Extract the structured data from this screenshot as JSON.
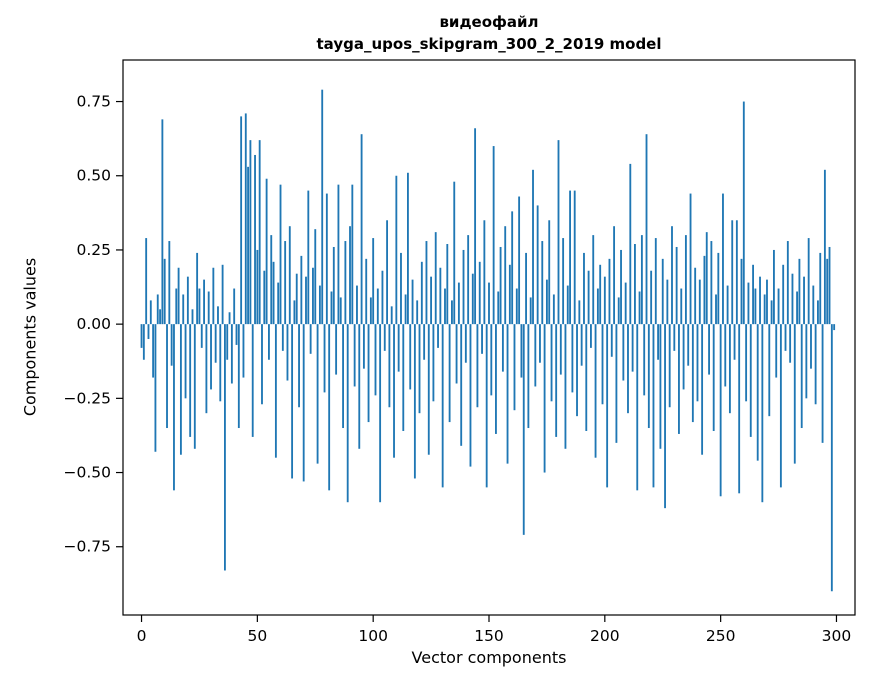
{
  "figure": {
    "title_line1": "видеофайл",
    "title_line2": "tayga_upos_skipgram_300_2_2019 model",
    "xlabel": "Vector components",
    "ylabel": "Components values"
  },
  "chart_data": {
    "type": "bar",
    "title": "видеофайл tayga_upos_skipgram_300_2_2019 model",
    "xlabel": "Vector components",
    "ylabel": "Components values",
    "x_start": 0,
    "xlim": [
      -8,
      308
    ],
    "ylim": [
      -0.98,
      0.89
    ],
    "x_ticks": [
      0,
      50,
      100,
      150,
      200,
      250,
      300
    ],
    "x_tick_labels": [
      "0",
      "50",
      "100",
      "150",
      "200",
      "250",
      "300"
    ],
    "y_ticks": [
      0.75,
      0.5,
      0.25,
      0.0,
      -0.25,
      -0.5,
      -0.75
    ],
    "y_tick_labels": [
      "0.75",
      "0.50",
      "0.25",
      "0.00",
      "−0.25",
      "−0.50",
      "−0.75"
    ],
    "grid": false,
    "legend": false,
    "bar_color": "#1f77b4",
    "values": [
      -0.08,
      -0.12,
      0.29,
      -0.05,
      0.08,
      -0.18,
      -0.43,
      0.1,
      0.05,
      0.69,
      0.22,
      -0.35,
      0.28,
      -0.14,
      -0.56,
      0.12,
      0.19,
      -0.44,
      0.1,
      -0.25,
      0.16,
      -0.38,
      0.05,
      -0.42,
      0.24,
      0.12,
      -0.08,
      0.15,
      -0.3,
      0.11,
      -0.22,
      0.19,
      -0.13,
      0.06,
      -0.26,
      0.2,
      -0.83,
      -0.12,
      0.04,
      -0.2,
      0.12,
      -0.07,
      -0.35,
      0.7,
      -0.18,
      0.71,
      0.53,
      0.62,
      -0.38,
      0.57,
      0.25,
      0.62,
      -0.27,
      0.18,
      0.49,
      -0.12,
      0.3,
      0.21,
      -0.45,
      0.14,
      0.47,
      -0.09,
      0.28,
      -0.19,
      0.33,
      -0.52,
      0.08,
      0.17,
      -0.28,
      0.23,
      -0.53,
      0.16,
      0.45,
      -0.1,
      0.19,
      0.32,
      -0.47,
      0.13,
      0.79,
      -0.23,
      0.44,
      -0.56,
      0.11,
      0.26,
      -0.17,
      0.47,
      0.09,
      -0.35,
      0.28,
      -0.6,
      0.33,
      0.47,
      -0.21,
      0.13,
      -0.42,
      0.64,
      -0.15,
      0.22,
      -0.33,
      0.09,
      0.29,
      -0.24,
      0.12,
      -0.6,
      0.18,
      -0.09,
      0.35,
      -0.28,
      0.06,
      -0.45,
      0.5,
      -0.16,
      0.24,
      -0.36,
      0.1,
      0.51,
      -0.22,
      0.15,
      -0.52,
      0.08,
      -0.3,
      0.21,
      -0.12,
      0.28,
      -0.44,
      0.16,
      -0.26,
      0.31,
      -0.08,
      0.19,
      -0.55,
      0.12,
      0.27,
      -0.33,
      0.08,
      0.48,
      -0.2,
      0.14,
      -0.41,
      0.25,
      -0.13,
      0.3,
      -0.48,
      0.17,
      0.66,
      -0.28,
      0.21,
      -0.1,
      0.35,
      -0.55,
      0.14,
      -0.24,
      0.6,
      -0.37,
      0.11,
      0.26,
      -0.16,
      0.33,
      -0.47,
      0.2,
      0.38,
      -0.29,
      0.12,
      0.43,
      -0.18,
      -0.71,
      0.24,
      -0.35,
      0.09,
      0.52,
      -0.21,
      0.4,
      -0.13,
      0.28,
      -0.5,
      0.15,
      0.35,
      -0.26,
      0.1,
      -0.38,
      0.62,
      -0.17,
      0.29,
      -0.42,
      0.13,
      0.45,
      -0.23,
      0.45,
      -0.31,
      0.08,
      -0.14,
      0.24,
      -0.36,
      0.18,
      -0.08,
      0.3,
      -0.45,
      0.12,
      0.2,
      -0.27,
      0.16,
      -0.55,
      0.22,
      -0.11,
      0.33,
      -0.4,
      0.09,
      0.25,
      -0.19,
      0.14,
      -0.3,
      0.54,
      -0.16,
      0.27,
      -0.56,
      0.11,
      0.3,
      -0.24,
      0.64,
      -0.35,
      0.18,
      -0.55,
      0.29,
      -0.12,
      -0.42,
      0.22,
      -0.62,
      0.15,
      -0.28,
      0.33,
      -0.09,
      0.26,
      -0.37,
      0.12,
      -0.22,
      0.3,
      -0.14,
      0.44,
      -0.33,
      0.19,
      -0.26,
      0.15,
      -0.44,
      0.23,
      0.31,
      -0.17,
      0.28,
      -0.36,
      0.1,
      0.24,
      -0.58,
      0.44,
      -0.21,
      0.13,
      -0.3,
      0.35,
      -0.12,
      0.35,
      -0.57,
      0.22,
      0.75,
      -0.26,
      0.14,
      -0.38,
      0.2,
      0.12,
      -0.46,
      0.16,
      -0.6,
      0.1,
      0.15,
      -0.31,
      0.08,
      0.25,
      -0.18,
      0.12,
      -0.55,
      0.2,
      -0.09,
      0.28,
      -0.13,
      0.17,
      -0.47,
      0.11,
      0.22,
      -0.35,
      0.16,
      -0.25,
      0.29,
      -0.15,
      0.13,
      -0.27,
      0.08,
      0.24,
      -0.4,
      0.52,
      0.22,
      0.26,
      -0.9,
      -0.02
    ]
  }
}
